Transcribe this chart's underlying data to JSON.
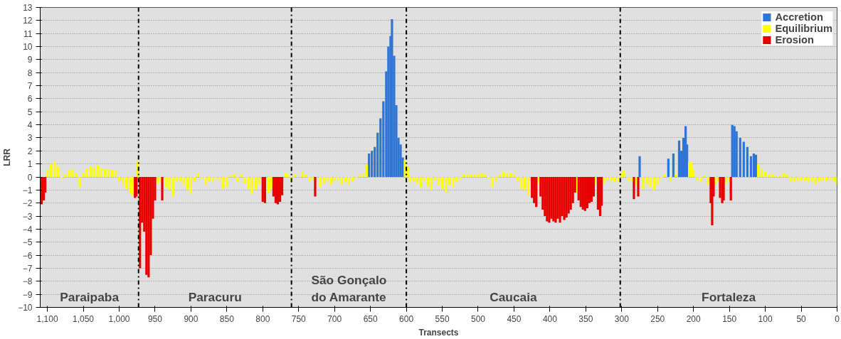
{
  "chart_data": {
    "type": "bar",
    "xlabel": "Transects",
    "ylabel": "LRR",
    "xlim": [
      1110,
      0
    ],
    "ylim": [
      -10,
      13
    ],
    "xticks": [
      {
        "value": 1100,
        "label": "1,100"
      },
      {
        "value": 1050,
        "label": "1,050"
      },
      {
        "value": 1000,
        "label": "1,000"
      },
      950,
      900,
      850,
      800,
      750,
      700,
      650,
      600,
      550,
      500,
      450,
      400,
      350,
      300,
      250,
      200,
      150,
      100,
      50,
      0
    ],
    "yticks": [
      -10,
      -9,
      -8,
      -7,
      -6,
      -5,
      -4,
      -3,
      -2,
      -1,
      0,
      1,
      2,
      3,
      4,
      5,
      6,
      7,
      8,
      9,
      10,
      11,
      12,
      13
    ],
    "grid": "y",
    "legend": "top right",
    "series": [
      {
        "name": "Accretion",
        "color": "#2e75d6",
        "x": [
          652,
          648,
          644,
          640,
          636,
          632,
          628,
          625,
          622,
          620,
          617,
          614,
          611,
          608,
          605,
          275,
          235,
          228,
          220,
          217,
          214,
          211,
          209,
          146,
          143,
          140,
          135,
          130,
          125,
          120,
          116,
          113
        ],
        "values": [
          1.8,
          2.0,
          2.3,
          3.4,
          4.5,
          5.8,
          8.1,
          10.0,
          10.8,
          12.1,
          9.3,
          5.5,
          3.0,
          2.5,
          1.5,
          1.6,
          1.4,
          1.8,
          2.8,
          2.0,
          3.0,
          3.9,
          2.5,
          4.0,
          3.9,
          3.5,
          3.0,
          2.7,
          2.3,
          1.6,
          1.8,
          1.7
        ]
      },
      {
        "name": "Equilibrium",
        "color": "#ffff00",
        "x": [
          1100,
          1095,
          1090,
          1085,
          1080,
          1075,
          1070,
          1065,
          1060,
          1055,
          1050,
          1045,
          1040,
          1035,
          1030,
          1025,
          1020,
          1015,
          1010,
          1005,
          1000,
          995,
          990,
          985,
          982,
          974,
          946,
          942,
          935,
          930,
          925,
          920,
          915,
          910,
          905,
          900,
          895,
          890,
          885,
          880,
          875,
          870,
          865,
          860,
          855,
          850,
          845,
          840,
          835,
          830,
          825,
          820,
          815,
          810,
          805,
          792,
          788,
          768,
          765,
          760,
          755,
          745,
          740,
          735,
          730,
          720,
          715,
          710,
          705,
          700,
          695,
          690,
          685,
          680,
          675,
          670,
          665,
          660,
          655,
          602,
          598,
          595,
          590,
          585,
          580,
          575,
          570,
          565,
          560,
          555,
          550,
          545,
          540,
          535,
          530,
          525,
          520,
          515,
          510,
          505,
          500,
          495,
          490,
          485,
          480,
          475,
          470,
          465,
          460,
          455,
          450,
          445,
          440,
          435,
          430,
          416,
          363,
          337,
          325,
          320,
          315,
          310,
          305,
          300,
          297,
          290,
          285,
          280,
          270,
          265,
          260,
          255,
          250,
          245,
          240,
          232,
          225,
          206,
          203,
          200,
          195,
          190,
          185,
          180,
          170,
          166,
          155,
          150,
          110,
          105,
          100,
          95,
          90,
          85,
          80,
          75,
          70,
          65,
          60,
          55,
          50,
          45,
          40,
          35,
          30,
          25,
          20,
          15,
          10,
          5,
          1
        ],
        "values": [
          0.5,
          1.0,
          1.2,
          0.8,
          -0.1,
          0.2,
          0.5,
          0.6,
          0.3,
          -0.8,
          0.3,
          0.6,
          0.8,
          0.7,
          0.9,
          0.7,
          0.6,
          0.6,
          0.5,
          0.5,
          -0.3,
          -0.6,
          -0.9,
          -1.2,
          -1.4,
          1.2,
          -0.5,
          -0.3,
          -0.8,
          -1.0,
          -1.5,
          -0.4,
          -0.3,
          -0.6,
          -1.0,
          -1.3,
          -0.3,
          0.3,
          -0.1,
          -0.6,
          -0.3,
          -0.4,
          -0.1,
          -0.2,
          -0.9,
          -0.8,
          0.1,
          0.2,
          -0.4,
          0.2,
          -0.5,
          -0.9,
          -1.3,
          -1.0,
          -0.6,
          -1.2,
          -0.9,
          0.3,
          0.2,
          -0.3,
          0.2,
          0.4,
          0.2,
          -0.3,
          -0.2,
          -0.8,
          -0.5,
          -0.3,
          -0.6,
          -0.3,
          -0.2,
          -0.6,
          -0.4,
          -0.6,
          -0.3,
          -0.1,
          0.1,
          0.3,
          0.9,
          1.3,
          0.8,
          -0.4,
          -0.3,
          -0.5,
          -0.8,
          -0.3,
          -0.7,
          -1.0,
          -0.2,
          -0.6,
          -0.9,
          -1.2,
          -0.6,
          -0.8,
          -0.4,
          -0.2,
          0.2,
          0.2,
          0.2,
          0.2,
          0.2,
          0.3,
          0.2,
          -0.1,
          -0.8,
          -0.3,
          0.2,
          0.4,
          0.3,
          0.3,
          0.2,
          -0.3,
          -0.9,
          -1.0,
          -1.4,
          -0.5,
          -1.2,
          -0.6,
          -0.5,
          -0.2,
          -0.3,
          -0.4,
          -0.4,
          0.3,
          0.5,
          -0.3,
          -0.4,
          -0.6,
          -0.9,
          -0.5,
          -0.8,
          -1.0,
          -0.6,
          -0.1,
          0.2,
          -0.3,
          0.2,
          1.1,
          1.2,
          0.6,
          -0.2,
          -0.4,
          0.1,
          -0.6,
          -0.6,
          -0.4,
          -0.5,
          -0.4,
          1.0,
          0.6,
          0.4,
          0.2,
          0.2,
          0.1,
          0.1,
          0.3,
          0.2,
          -0.3,
          -0.4,
          -0.3,
          -0.3,
          -0.3,
          -0.4,
          -0.3,
          -0.6,
          -0.4,
          -0.3,
          -0.3,
          -0.2,
          -0.3,
          -0.6
        ]
      },
      {
        "name": "Erosion",
        "color": "#e60000",
        "x": [
          1108,
          1105,
          1103,
          978,
          976,
          971,
          968,
          965,
          962,
          959,
          956,
          953,
          950,
          940,
          800,
          797,
          785,
          782,
          779,
          776,
          773,
          727,
          425,
          422,
          419,
          413,
          410,
          407,
          404,
          401,
          398,
          395,
          392,
          389,
          386,
          383,
          380,
          377,
          374,
          371,
          368,
          365,
          360,
          357,
          354,
          351,
          348,
          345,
          342,
          339,
          333,
          330,
          328,
          283,
          277,
          176,
          174,
          172,
          163,
          160,
          158,
          148
        ],
        "values": [
          -2.1,
          -1.8,
          -1.2,
          -1.6,
          -1.5,
          -7.0,
          -3.5,
          -4.2,
          -7.5,
          -7.7,
          -6.0,
          -3.2,
          -1.8,
          -1.8,
          -1.9,
          -2.0,
          -1.5,
          -2.0,
          -2.1,
          -1.9,
          -1.4,
          -1.5,
          -1.6,
          -2.0,
          -2.3,
          -1.5,
          -2.5,
          -3.0,
          -3.4,
          -3.5,
          -3.2,
          -3.4,
          -3.5,
          -3.2,
          -3.5,
          -3.0,
          -3.3,
          -3.1,
          -2.8,
          -2.5,
          -2.0,
          -1.2,
          -1.8,
          -2.3,
          -2.5,
          -2.6,
          -2.4,
          -2.0,
          -1.9,
          -1.5,
          -2.5,
          -3.0,
          -2.2,
          -1.7,
          -1.5,
          -2.0,
          -3.7,
          -1.5,
          -1.6,
          -2.0,
          -1.8,
          -1.8
        ]
      }
    ],
    "ref_lines": [
      {
        "axis": "x",
        "value": 973,
        "color": "#000000",
        "line_style": "dashdot"
      },
      {
        "axis": "x",
        "value": 760,
        "color": "#000000",
        "line_style": "dashdot"
      },
      {
        "axis": "x",
        "value": 600,
        "color": "#000000",
        "line_style": "dashdot"
      },
      {
        "axis": "x",
        "value": 302,
        "color": "#000000",
        "line_style": "dashdot"
      }
    ],
    "annotations": [
      "Paraipaba",
      "Paracuru",
      "São Gonçalo\ndo Amarante",
      "Caucaia",
      "Fortaleza"
    ]
  }
}
